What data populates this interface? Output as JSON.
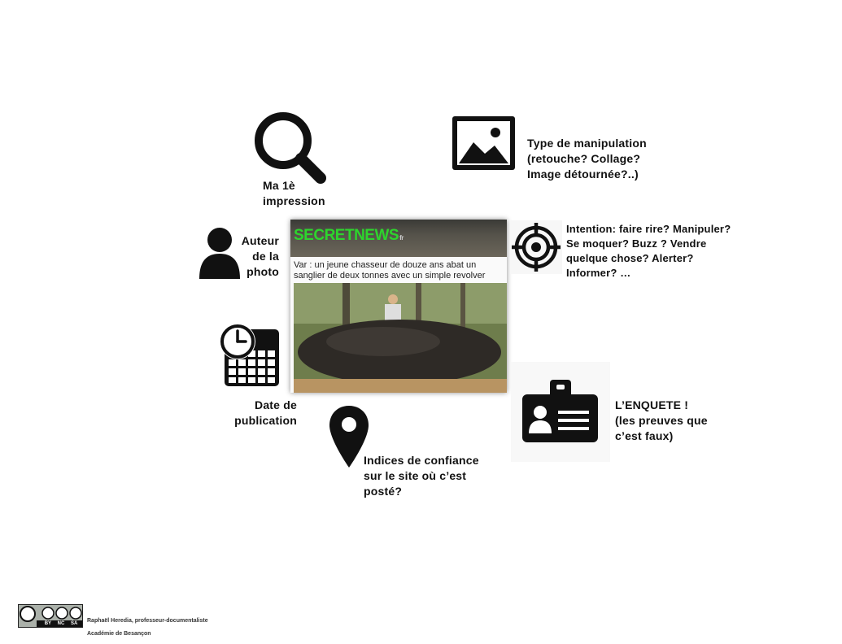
{
  "labels": {
    "impression": "Ma 1è\nimpression",
    "manipulation": "Type de manipulation\n(retouche? Collage?\nImage détournée?..)",
    "author": "Auteur\nde la\nphoto",
    "intention": "Intention: faire rire? Manipuler?\nSe moquer? Buzz ? Vendre\nquelque chose? Alerter?\nInformer? …",
    "date": "Date de\npublication",
    "enquete": "L’ENQUETE !\n(les preuves que\nc’est faux)",
    "trust": "Indices de confiance\nsur le site où c’est\nposté?"
  },
  "photo": {
    "logo": "SECRETNEWS",
    "logo_suffix": "fr",
    "caption": "Var : un jeune chasseur de douze ans abat un sanglier de deux tonnes avec un simple revolver"
  },
  "footer": {
    "license": "BY NC SA",
    "author": "Raphaël Heredia, professeur-documentaliste",
    "academy": "Académie de Besançon"
  },
  "icons": [
    "magnifier-icon",
    "image-icon",
    "person-icon",
    "target-icon",
    "clock-calendar-icon",
    "map-pin-icon",
    "id-badge-icon"
  ],
  "colors": {
    "text": "#111111",
    "icon": "#111111",
    "logo_green": "#2dd52d"
  }
}
